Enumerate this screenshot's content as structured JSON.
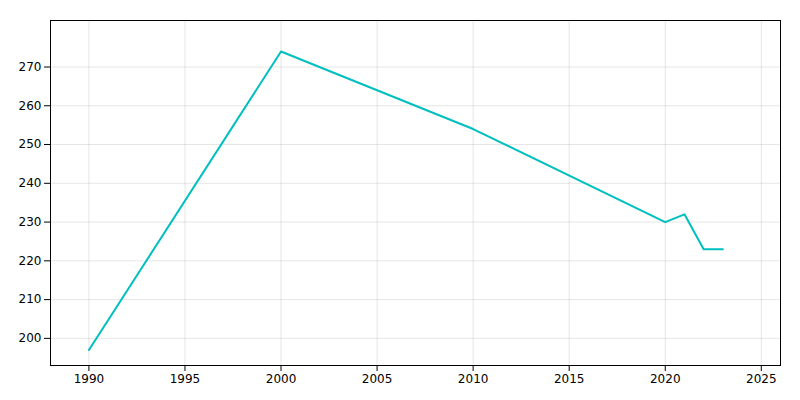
{
  "chart_data": {
    "type": "line",
    "x": [
      1990,
      2000,
      2010,
      2020,
      2021,
      2022,
      2023
    ],
    "values": [
      197,
      274,
      254,
      230,
      232,
      223,
      223
    ],
    "color": "#00BFBF",
    "xlim": [
      1988,
      2026
    ],
    "ylim": [
      193,
      282
    ],
    "xticks": [
      1990,
      1995,
      2000,
      2005,
      2010,
      2015,
      2020,
      2025
    ],
    "yticks": [
      200,
      210,
      220,
      230,
      240,
      250,
      260,
      270
    ],
    "grid": true
  }
}
